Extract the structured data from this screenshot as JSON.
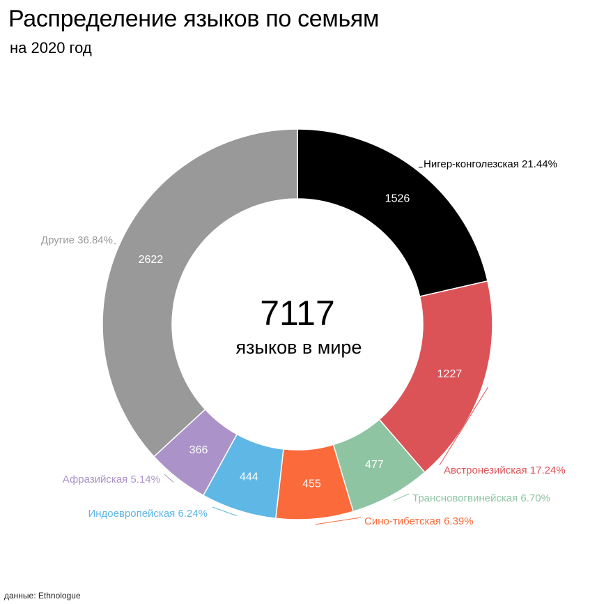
{
  "title": "Распределение языков по семьям",
  "subtitle": "на 2020 год",
  "source": "данные: Ethnologue",
  "chart_data": {
    "type": "pie",
    "center_total": "7117",
    "center_caption": "языков в мире",
    "slices": [
      {
        "name": "Нигер-конголезская",
        "value": 1526,
        "percent": "21.44%",
        "color": "#000000",
        "label_color": "#000000"
      },
      {
        "name": "Австронезийская",
        "value": 1227,
        "percent": "17.24%",
        "color": "#dc5357",
        "label_color": "#dc5357"
      },
      {
        "name": "Трансновогвинейская",
        "value": 477,
        "percent": "6.70%",
        "color": "#8fc4a3",
        "label_color": "#8fc4a3"
      },
      {
        "name": "Сино-тибетская",
        "value": 455,
        "percent": "6.39%",
        "color": "#fb6a3a",
        "label_color": "#fb6a3a"
      },
      {
        "name": "Индоевропейская",
        "value": 444,
        "percent": "6.24%",
        "color": "#5fb7e6",
        "label_color": "#5fb7e6"
      },
      {
        "name": "Афразийская",
        "value": 366,
        "percent": "5.14%",
        "color": "#ab92c8",
        "label_color": "#ab92c8"
      },
      {
        "name": "Другие",
        "value": 2622,
        "percent": "36.84%",
        "color": "#999999",
        "label_color": "#999999"
      }
    ]
  }
}
